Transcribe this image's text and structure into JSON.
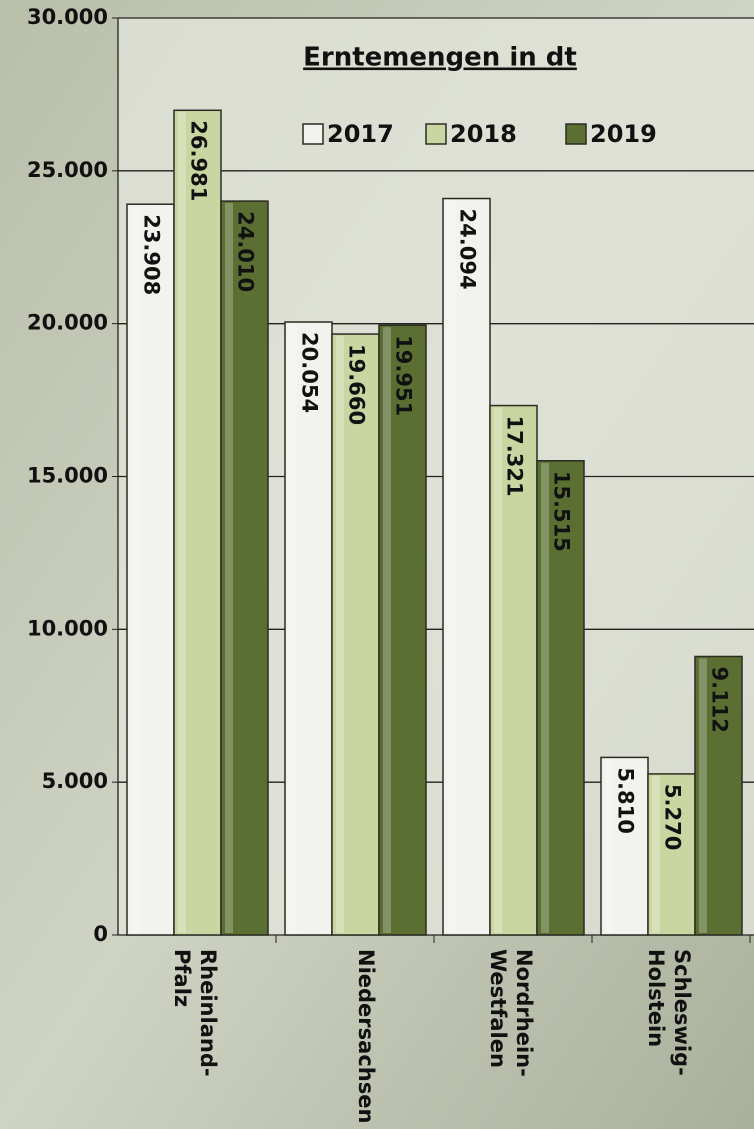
{
  "chart_data": {
    "type": "bar",
    "title": "Erntemengen in dt",
    "categories": [
      "Rheinland-\nPfalz",
      "Niedersachsen",
      "Nordrhein-\nWestfalen",
      "Schleswig-\nHolstein"
    ],
    "series": [
      {
        "name": "2017",
        "color": "#f2f2ee",
        "values": [
          23908,
          20054,
          24094,
          5810
        ],
        "value_labels": [
          "23.908",
          "20.054",
          "24.094",
          "5.810"
        ]
      },
      {
        "name": "2018",
        "color": "#c9d6a2",
        "values": [
          26981,
          19660,
          17321,
          5270
        ],
        "value_labels": [
          "26.981",
          "19.660",
          "17.321",
          "5.270"
        ]
      },
      {
        "name": "2019",
        "color": "#5b6f32",
        "values": [
          24010,
          19951,
          15515,
          9112
        ],
        "value_labels": [
          "24.010",
          "19.951",
          "15.515",
          "9.112"
        ]
      }
    ],
    "ylim": [
      0,
      30000
    ],
    "yticks": [
      {
        "value": 0,
        "label": "0"
      },
      {
        "value": 5000,
        "label": "5.000"
      },
      {
        "value": 10000,
        "label": "10.000"
      },
      {
        "value": 15000,
        "label": "15.000"
      },
      {
        "value": 20000,
        "label": "20.000"
      },
      {
        "value": 25000,
        "label": "25.000"
      },
      {
        "value": 30000,
        "label": "30.000"
      }
    ],
    "grid": true
  }
}
